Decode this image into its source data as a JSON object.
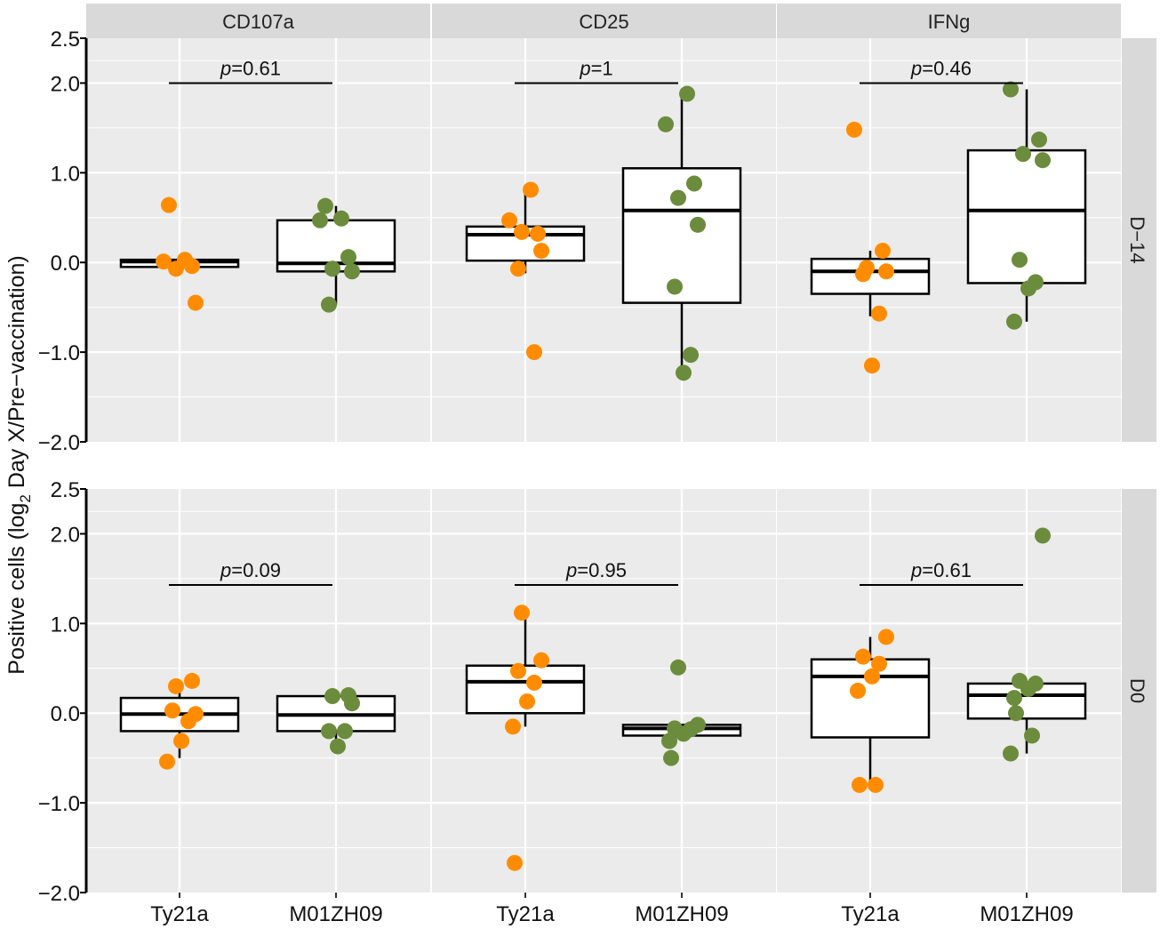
{
  "chart_data": {
    "type": "box",
    "ylabel": "Positive cells (log2 Day X/Pre-vaccination)",
    "ylabel_parts": {
      "pre": "Positive cells (log",
      "sub": "2",
      "post": " Day X/Pre−vaccination)"
    },
    "ylim": [
      -2.0,
      2.5
    ],
    "yticks": [
      -2.0,
      -1.0,
      0.0,
      1.0,
      2.0,
      2.5
    ],
    "ytick_labels": [
      "−2.0",
      "−1.0",
      "0.0",
      "1.0",
      "2.0",
      "2.5"
    ],
    "categories": [
      "Ty21a",
      "M01ZH09"
    ],
    "colors": {
      "Ty21a": "#FF8C00",
      "M01ZH09": "#6B8C3C",
      "panel_bg": "#EBEBEB",
      "strip_bg": "#D9D9D9"
    },
    "columns": [
      "CD107a",
      "CD25",
      "IFNg"
    ],
    "rows": [
      "D−14",
      "D0"
    ],
    "panels": [
      {
        "row": 0,
        "col": 0,
        "p_label": "p",
        "p_value": "=0.61",
        "bracket_y": 2.0,
        "groups": [
          {
            "box": [
              -0.05,
              -0.05,
              0.01,
              0.03,
              0.03
            ],
            "points": [
              0.64,
              0.03,
              0.01,
              -0.04,
              -0.07,
              -0.45
            ]
          },
          {
            "box": [
              -0.47,
              -0.1,
              -0.01,
              0.47,
              0.63
            ],
            "points": [
              0.63,
              0.49,
              0.47,
              0.06,
              -0.07,
              -0.1,
              -0.47
            ]
          }
        ]
      },
      {
        "row": 0,
        "col": 1,
        "p_label": "p",
        "p_value": "=1",
        "bracket_y": 2.0,
        "groups": [
          {
            "box": [
              -0.12,
              0.02,
              0.31,
              0.4,
              0.81
            ],
            "points": [
              0.81,
              0.47,
              0.32,
              0.34,
              0.13,
              -0.07,
              -1.0
            ]
          },
          {
            "box": [
              -1.23,
              -0.45,
              0.58,
              1.05,
              1.88
            ],
            "points": [
              1.88,
              1.54,
              0.88,
              0.72,
              0.42,
              -0.27,
              -1.03,
              -1.23
            ]
          }
        ]
      },
      {
        "row": 0,
        "col": 2,
        "p_label": "p",
        "p_value": "=0.46",
        "bracket_y": 2.0,
        "groups": [
          {
            "box": [
              -0.6,
              -0.35,
              -0.1,
              0.04,
              0.13
            ],
            "points": [
              1.48,
              0.13,
              -0.06,
              -0.1,
              -0.13,
              -0.57,
              -1.15
            ]
          },
          {
            "box": [
              -0.66,
              -0.23,
              0.58,
              1.25,
              1.93
            ],
            "points": [
              1.93,
              1.37,
              1.21,
              1.14,
              0.03,
              -0.22,
              -0.29,
              -0.66
            ]
          }
        ]
      },
      {
        "row": 1,
        "col": 0,
        "p_label": "p",
        "p_value": "=0.09",
        "bracket_y": 1.43,
        "groups": [
          {
            "box": [
              -0.5,
              -0.2,
              -0.01,
              0.17,
              0.36
            ],
            "points": [
              0.36,
              0.3,
              -0.01,
              0.03,
              -0.09,
              -0.31,
              -0.54
            ]
          },
          {
            "box": [
              -0.37,
              -0.2,
              -0.02,
              0.19,
              0.2
            ],
            "points": [
              0.2,
              0.19,
              0.11,
              -0.2,
              -0.2,
              -0.37
            ]
          }
        ]
      },
      {
        "row": 1,
        "col": 1,
        "p_label": "p",
        "p_value": "=0.95",
        "bracket_y": 1.43,
        "groups": [
          {
            "box": [
              -0.15,
              0.0,
              0.35,
              0.53,
              1.12
            ],
            "points": [
              1.12,
              0.59,
              0.47,
              0.34,
              0.13,
              -0.15,
              -1.67
            ]
          },
          {
            "box": [
              -0.25,
              -0.25,
              -0.17,
              -0.13,
              -0.13
            ],
            "points": [
              0.51,
              -0.13,
              -0.17,
              -0.18,
              -0.23,
              -0.31,
              -0.5
            ]
          }
        ]
      },
      {
        "row": 1,
        "col": 2,
        "p_label": "p",
        "p_value": "=0.61",
        "bracket_y": 1.43,
        "groups": [
          {
            "box": [
              -0.8,
              -0.27,
              0.41,
              0.6,
              0.85
            ],
            "points": [
              0.85,
              0.63,
              0.55,
              0.41,
              0.25,
              -0.8,
              -0.8
            ]
          },
          {
            "box": [
              -0.45,
              -0.06,
              0.2,
              0.33,
              0.36
            ],
            "points": [
              1.98,
              0.36,
              0.33,
              0.27,
              0.17,
              0.0,
              -0.25,
              -0.45
            ]
          }
        ]
      }
    ]
  }
}
